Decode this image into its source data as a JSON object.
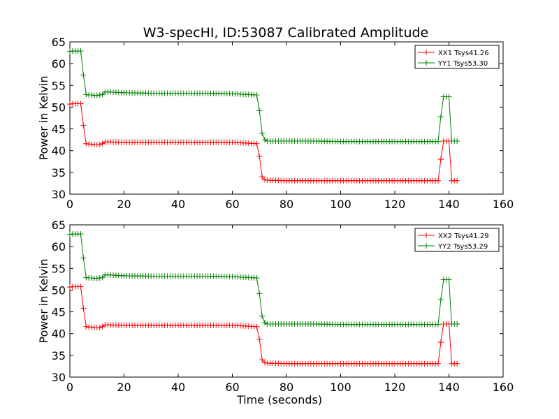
{
  "figure": {
    "title": "W3-specHI, ID:53087 Calibrated Amplitude",
    "background": "#ffffff"
  },
  "colors": {
    "red": "#ff0000",
    "green": "#008000",
    "marker": "plus"
  },
  "chart_data": [
    {
      "type": "line",
      "title": "W3-specHI, ID:53087 Calibrated Amplitude",
      "xlabel": "",
      "ylabel": "Power in Kelvin",
      "xlim": [
        0,
        160
      ],
      "ylim": [
        30,
        65
      ],
      "xticks": [
        0,
        20,
        40,
        60,
        80,
        100,
        120,
        140,
        160
      ],
      "yticks": [
        30,
        35,
        40,
        45,
        50,
        55,
        60,
        65
      ],
      "grid": false,
      "legend_position": "top-right",
      "series": [
        {
          "name": "XX1 Tsys41.26",
          "color": "#ff0000",
          "x": [
            0,
            1,
            2,
            3,
            4,
            5,
            6,
            7,
            8,
            9,
            10,
            11,
            12,
            13,
            14,
            20,
            30,
            40,
            50,
            60,
            69,
            70,
            71,
            72,
            73,
            80,
            90,
            100,
            110,
            120,
            130,
            135,
            136,
            137,
            138,
            139,
            140,
            141,
            142,
            143
          ],
          "y": [
            50.7,
            50.8,
            50.8,
            50.8,
            50.8,
            45.8,
            41.6,
            41.5,
            41.5,
            41.4,
            41.4,
            41.4,
            41.6,
            42.0,
            42.0,
            41.9,
            41.9,
            41.9,
            41.9,
            41.9,
            41.6,
            38.7,
            34.0,
            33.3,
            33.2,
            33.1,
            33.1,
            33.1,
            33.1,
            33.1,
            33.1,
            33.1,
            33.1,
            38.0,
            42.2,
            42.2,
            42.2,
            33.1,
            33.1,
            33.1
          ]
        }
      ]
    },
    {
      "type": "line",
      "title": "",
      "xlabel": "Time (seconds)",
      "ylabel": "Power in Kelvin",
      "xlim": [
        0,
        160
      ],
      "ylim": [
        30,
        65
      ],
      "xticks": [
        0,
        20,
        40,
        60,
        80,
        100,
        120,
        140,
        160
      ],
      "yticks": [
        30,
        35,
        40,
        45,
        50,
        55,
        60,
        65
      ],
      "grid": false,
      "legend_position": "top-right",
      "series": [
        {
          "name": "XX2 Tsys41.29",
          "color": "#ff0000",
          "x": [
            0,
            1,
            2,
            3,
            4,
            5,
            6,
            7,
            8,
            9,
            10,
            11,
            12,
            13,
            14,
            20,
            30,
            40,
            50,
            60,
            69,
            70,
            71,
            72,
            73,
            80,
            90,
            100,
            110,
            120,
            130,
            135,
            136,
            137,
            138,
            139,
            140,
            141,
            142,
            143
          ],
          "y": [
            50.7,
            50.8,
            50.8,
            50.8,
            50.8,
            45.8,
            41.6,
            41.5,
            41.5,
            41.4,
            41.4,
            41.4,
            41.6,
            42.0,
            42.0,
            41.9,
            41.9,
            41.9,
            41.9,
            41.9,
            41.6,
            38.7,
            34.0,
            33.3,
            33.2,
            33.1,
            33.1,
            33.1,
            33.1,
            33.1,
            33.1,
            33.1,
            33.1,
            38.0,
            42.2,
            42.2,
            42.2,
            33.1,
            33.1,
            33.1
          ]
        }
      ]
    }
  ]
}
